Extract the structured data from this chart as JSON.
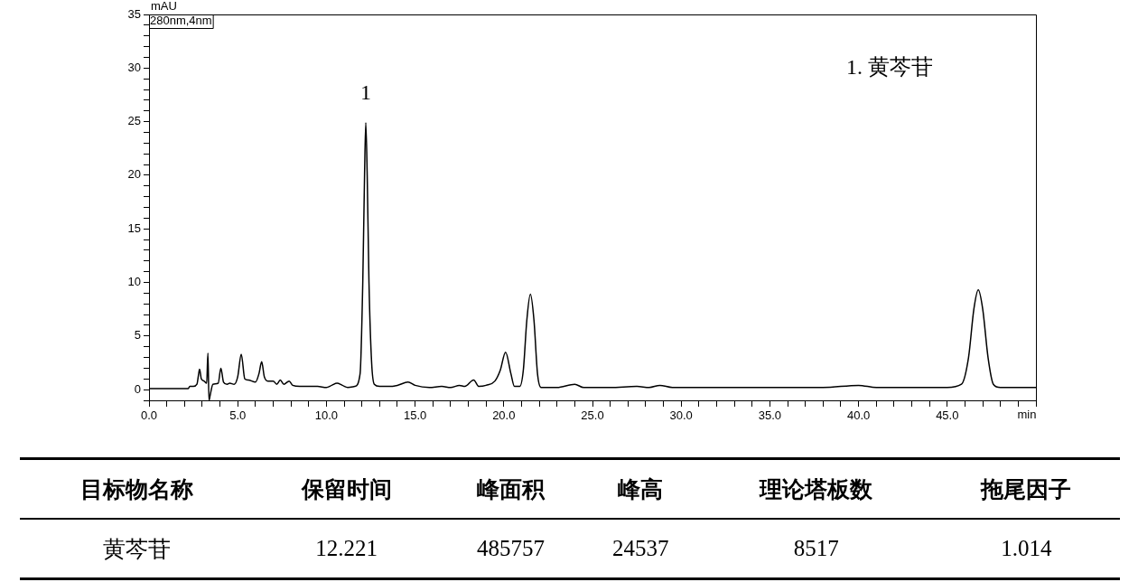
{
  "chart_data": {
    "type": "line",
    "xlabel": "min",
    "ylabel": "mAU",
    "color": "#000000",
    "x": [
      0,
      1,
      2.2,
      2.3,
      2.5,
      2.7,
      2.8,
      2.85,
      2.95,
      3.1,
      3.25,
      3.32,
      3.38,
      3.45,
      3.6,
      3.9,
      4.05,
      4.2,
      4.4,
      4.55,
      4.8,
      5.0,
      5.2,
      5.4,
      5.6,
      6.0,
      6.2,
      6.35,
      6.5,
      6.7,
      7.0,
      7.2,
      7.4,
      7.6,
      7.9,
      8.1,
      8.5,
      9.0,
      9.5,
      10.0,
      10.3,
      10.6,
      10.9,
      11.2,
      11.6,
      11.9,
      12.05,
      12.15,
      12.22,
      12.3,
      12.4,
      12.55,
      12.7,
      13.0,
      13.5,
      14.0,
      14.6,
      15.0,
      15.8,
      16.5,
      17.0,
      17.5,
      17.8,
      18.3,
      18.6,
      19.0,
      19.5,
      19.8,
      20.1,
      20.4,
      20.6,
      20.9,
      21.1,
      21.3,
      21.5,
      21.7,
      21.9,
      22.1,
      23.0,
      24.0,
      24.5,
      26.0,
      27.5,
      28.2,
      28.8,
      29.5,
      35.0,
      38.0,
      40.0,
      41.0,
      45.0,
      45.8,
      46.2,
      46.5,
      46.75,
      47.0,
      47.3,
      47.6,
      48.0,
      50.0
    ],
    "values": [
      0.1,
      0.1,
      0.1,
      0.3,
      0.3,
      0.5,
      1.5,
      1.9,
      1.0,
      0.8,
      0.6,
      3.4,
      -1.0,
      -0.5,
      0.5,
      0.6,
      2.0,
      0.7,
      0.5,
      0.6,
      0.5,
      1.2,
      3.3,
      1.0,
      0.9,
      0.7,
      1.5,
      2.6,
      1.2,
      0.8,
      0.8,
      0.5,
      0.9,
      0.5,
      0.8,
      0.4,
      0.3,
      0.3,
      0.3,
      0.2,
      0.4,
      0.6,
      0.4,
      0.2,
      0.3,
      1.5,
      10,
      20,
      24.9,
      20,
      10,
      2.5,
      0.5,
      0.3,
      0.3,
      0.4,
      0.7,
      0.4,
      0.2,
      0.3,
      0.2,
      0.4,
      0.3,
      0.9,
      0.3,
      0.4,
      0.8,
      1.8,
      3.5,
      1.5,
      0.3,
      0.3,
      1.8,
      6.5,
      8.9,
      6.5,
      1.5,
      0.2,
      0.2,
      0.5,
      0.2,
      0.2,
      0.3,
      0.2,
      0.4,
      0.2,
      0.2,
      0.2,
      0.4,
      0.2,
      0.2,
      0.5,
      3,
      7.5,
      9.3,
      7.5,
      3,
      0.5,
      0.2,
      0.2
    ],
    "xlim": [
      0,
      50
    ],
    "ylim": [
      -1,
      35
    ],
    "xticks": [
      {
        "value": 0,
        "label": "0.0"
      },
      {
        "value": 1,
        "label": null
      },
      {
        "value": 2,
        "label": null
      },
      {
        "value": 3,
        "label": null
      },
      {
        "value": 4,
        "label": null
      },
      {
        "value": 5,
        "label": "5.0"
      },
      {
        "value": 6,
        "label": null
      },
      {
        "value": 7,
        "label": null
      },
      {
        "value": 8,
        "label": null
      },
      {
        "value": 9,
        "label": null
      },
      {
        "value": 10,
        "label": "10.0"
      },
      {
        "value": 11,
        "label": null
      },
      {
        "value": 12,
        "label": null
      },
      {
        "value": 13,
        "label": null
      },
      {
        "value": 14,
        "label": null
      },
      {
        "value": 15,
        "label": "15.0"
      },
      {
        "value": 16,
        "label": null
      },
      {
        "value": 17,
        "label": null
      },
      {
        "value": 18,
        "label": null
      },
      {
        "value": 19,
        "label": null
      },
      {
        "value": 20,
        "label": "20.0"
      },
      {
        "value": 21,
        "label": null
      },
      {
        "value": 22,
        "label": null
      },
      {
        "value": 23,
        "label": null
      },
      {
        "value": 24,
        "label": null
      },
      {
        "value": 25,
        "label": "25.0"
      },
      {
        "value": 26,
        "label": null
      },
      {
        "value": 27,
        "label": null
      },
      {
        "value": 28,
        "label": null
      },
      {
        "value": 29,
        "label": null
      },
      {
        "value": 30,
        "label": "30.0"
      },
      {
        "value": 31,
        "label": null
      },
      {
        "value": 32,
        "label": null
      },
      {
        "value": 33,
        "label": null
      },
      {
        "value": 34,
        "label": null
      },
      {
        "value": 35,
        "label": "35.0"
      },
      {
        "value": 36,
        "label": null
      },
      {
        "value": 37,
        "label": null
      },
      {
        "value": 38,
        "label": null
      },
      {
        "value": 39,
        "label": null
      },
      {
        "value": 40,
        "label": "40.0"
      },
      {
        "value": 41,
        "label": null
      },
      {
        "value": 42,
        "label": null
      },
      {
        "value": 43,
        "label": null
      },
      {
        "value": 44,
        "label": null
      },
      {
        "value": 45,
        "label": "45.0"
      },
      {
        "value": 46,
        "label": null
      },
      {
        "value": 47,
        "label": null
      },
      {
        "value": 48,
        "label": null
      },
      {
        "value": 49,
        "label": null
      },
      {
        "value": 50,
        "label": null
      }
    ],
    "yticks": [
      {
        "value": -1,
        "label": null
      },
      0,
      {
        "value": 1,
        "label": null
      },
      {
        "value": 2,
        "label": null
      },
      {
        "value": 3,
        "label": null
      },
      {
        "value": 4,
        "label": null
      },
      5,
      {
        "value": 6,
        "label": null
      },
      {
        "value": 7,
        "label": null
      },
      {
        "value": 8,
        "label": null
      },
      {
        "value": 9,
        "label": null
      },
      10,
      {
        "value": 11,
        "label": null
      },
      {
        "value": 12,
        "label": null
      },
      {
        "value": 13,
        "label": null
      },
      {
        "value": 14,
        "label": null
      },
      15,
      {
        "value": 16,
        "label": null
      },
      {
        "value": 17,
        "label": null
      },
      {
        "value": 18,
        "label": null
      },
      {
        "value": 19,
        "label": null
      },
      20,
      {
        "value": 21,
        "label": null
      },
      {
        "value": 22,
        "label": null
      },
      {
        "value": 23,
        "label": null
      },
      {
        "value": 24,
        "label": null
      },
      25,
      {
        "value": 26,
        "label": null
      },
      {
        "value": 27,
        "label": null
      },
      {
        "value": 28,
        "label": null
      },
      {
        "value": 29,
        "label": null
      },
      30,
      {
        "value": 31,
        "label": null
      },
      {
        "value": 32,
        "label": null
      },
      {
        "value": 33,
        "label": null
      },
      {
        "value": 34,
        "label": null
      },
      35
    ],
    "grid": false,
    "legend": false,
    "marker": "none",
    "line_style": "solid",
    "annotations": [
      "280nm,4nm",
      {
        "text": "1",
        "x": 12.22,
        "y": 24.9
      },
      "1. 黄芩苷",
      "目标物名称",
      "保留时间",
      "峰面积",
      "峰高",
      "理论塔板数",
      "拖尾因子",
      "黄芩苷",
      "12.221",
      "485757",
      "24537",
      "8517",
      "1.014"
    ]
  }
}
